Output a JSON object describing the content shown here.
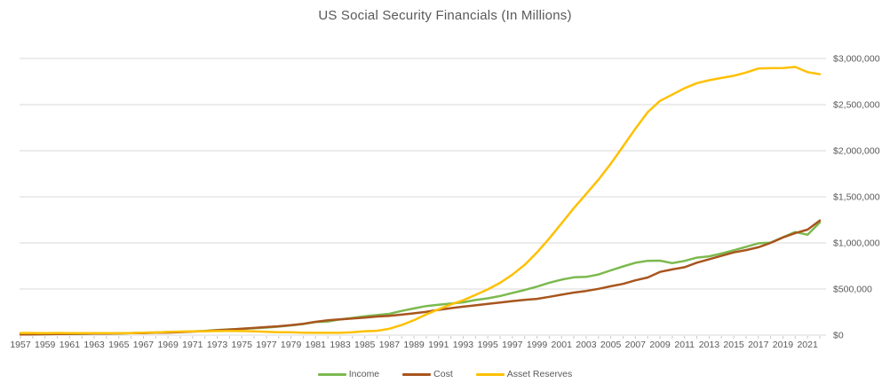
{
  "chart_data": {
    "type": "line",
    "title": "US Social Security Financials (In Millions)",
    "xlabel": "",
    "ylabel": "",
    "ylim": [
      0,
      3000000
    ],
    "grid": "horizontal",
    "legend_position": "bottom",
    "axis_text_color": "#595959",
    "grid_color": "#D9D9D9",
    "tick_color": "#C9C9C9",
    "x_label_ticks": [
      1957,
      1959,
      1961,
      1963,
      1965,
      1967,
      1969,
      1971,
      1973,
      1975,
      1977,
      1979,
      1981,
      1983,
      1985,
      1987,
      1989,
      1991,
      1993,
      1995,
      1997,
      1999,
      2001,
      2003,
      2005,
      2007,
      2009,
      2011,
      2013,
      2015,
      2017,
      2019,
      2021
    ],
    "y_ticks": [
      {
        "value": 0,
        "label": "$0"
      },
      {
        "value": 500000,
        "label": "$500,000"
      },
      {
        "value": 1000000,
        "label": "$1,000,000"
      },
      {
        "value": 1500000,
        "label": "$1,500,000"
      },
      {
        "value": 2000000,
        "label": "$2,000,000"
      },
      {
        "value": 2500000,
        "label": "$2,500,000"
      },
      {
        "value": 3000000,
        "label": "$3,000,000"
      }
    ],
    "years": [
      1957,
      1958,
      1959,
      1960,
      1961,
      1962,
      1963,
      1964,
      1965,
      1966,
      1967,
      1968,
      1969,
      1970,
      1971,
      1972,
      1973,
      1974,
      1975,
      1976,
      1977,
      1978,
      1979,
      1980,
      1981,
      1982,
      1983,
      1984,
      1985,
      1986,
      1987,
      1988,
      1989,
      1990,
      1991,
      1992,
      1993,
      1994,
      1995,
      1996,
      1997,
      1998,
      1999,
      2000,
      2001,
      2002,
      2003,
      2004,
      2005,
      2006,
      2007,
      2008,
      2009,
      2010,
      2011,
      2012,
      2013,
      2014,
      2015,
      2016,
      2017,
      2018,
      2019,
      2020,
      2021,
      2022
    ],
    "series": [
      {
        "name": "Income",
        "color": "#7CB94F",
        "values": [
          8117,
          9108,
          9516,
          12445,
          13390,
          13699,
          16227,
          17476,
          17857,
          23381,
          26413,
          28493,
          33346,
          36267,
          40908,
          45622,
          54787,
          62066,
          67640,
          75034,
          81982,
          91903,
          105864,
          119712,
          142438,
          147913,
          171266,
          186637,
          203540,
          216833,
          231039,
          262747,
          288989,
          315443,
          329676,
          342591,
          355578,
          381111,
          399497,
          424451,
          457668,
          489204,
          526396,
          568433,
          602003,
          627085,
          631886,
          657718,
          701768,
          744873,
          784889,
          805301,
          807500,
          781128,
          805057,
          840190,
          855021,
          884278,
          920157,
          957453,
          996612,
          1003361,
          1061800,
          1118100,
          1088800,
          1222100
        ]
      },
      {
        "name": "Cost",
        "color": "#A8551E",
        "values": [
          7560,
          8907,
          10770,
          11798,
          13388,
          15156,
          16217,
          16778,
          19187,
          20913,
          22471,
          26015,
          27892,
          33108,
          38542,
          43281,
          53148,
          60593,
          69184,
          78242,
          87345,
          96018,
          107320,
          123550,
          144352,
          160111,
          171177,
          180429,
          190628,
          201522,
          209093,
          222514,
          236242,
          253135,
          274205,
          291865,
          308766,
          323011,
          339815,
          353569,
          369108,
          382255,
          392908,
          415121,
          438916,
          461653,
          479086,
          501643,
          529938,
          555421,
          594501,
          625143,
          685801,
          712526,
          736083,
          785781,
          822927,
          859230,
          897126,
          922275,
          952490,
          1000173,
          1059300,
          1107200,
          1144600,
          1243700
        ]
      },
      {
        "name": "Asset Reserves",
        "color": "#FFC000",
        "values": [
          23025,
          23243,
          21966,
          22613,
          22151,
          20705,
          20715,
          21172,
          19841,
          22308,
          26250,
          28729,
          34182,
          38068,
          40434,
          42775,
          44414,
          45886,
          44342,
          41133,
          35861,
          31746,
          30291,
          26453,
          24539,
          24778,
          24867,
          31075,
          42163,
          46861,
          68807,
          109762,
          162968,
          225277,
          280747,
          331473,
          378285,
          436385,
          496068,
          566950,
          655510,
          762459,
          895947,
          1049445,
          1212533,
          1378009,
          1530764,
          1686842,
          1858672,
          2048124,
          2238512,
          2418670,
          2540348,
          2609014,
          2677931,
          2732334,
          2764431,
          2789476,
          2812507,
          2847687,
          2891805,
          2895227,
          2897100,
          2908300,
          2852000,
          2830100
        ]
      }
    ]
  }
}
